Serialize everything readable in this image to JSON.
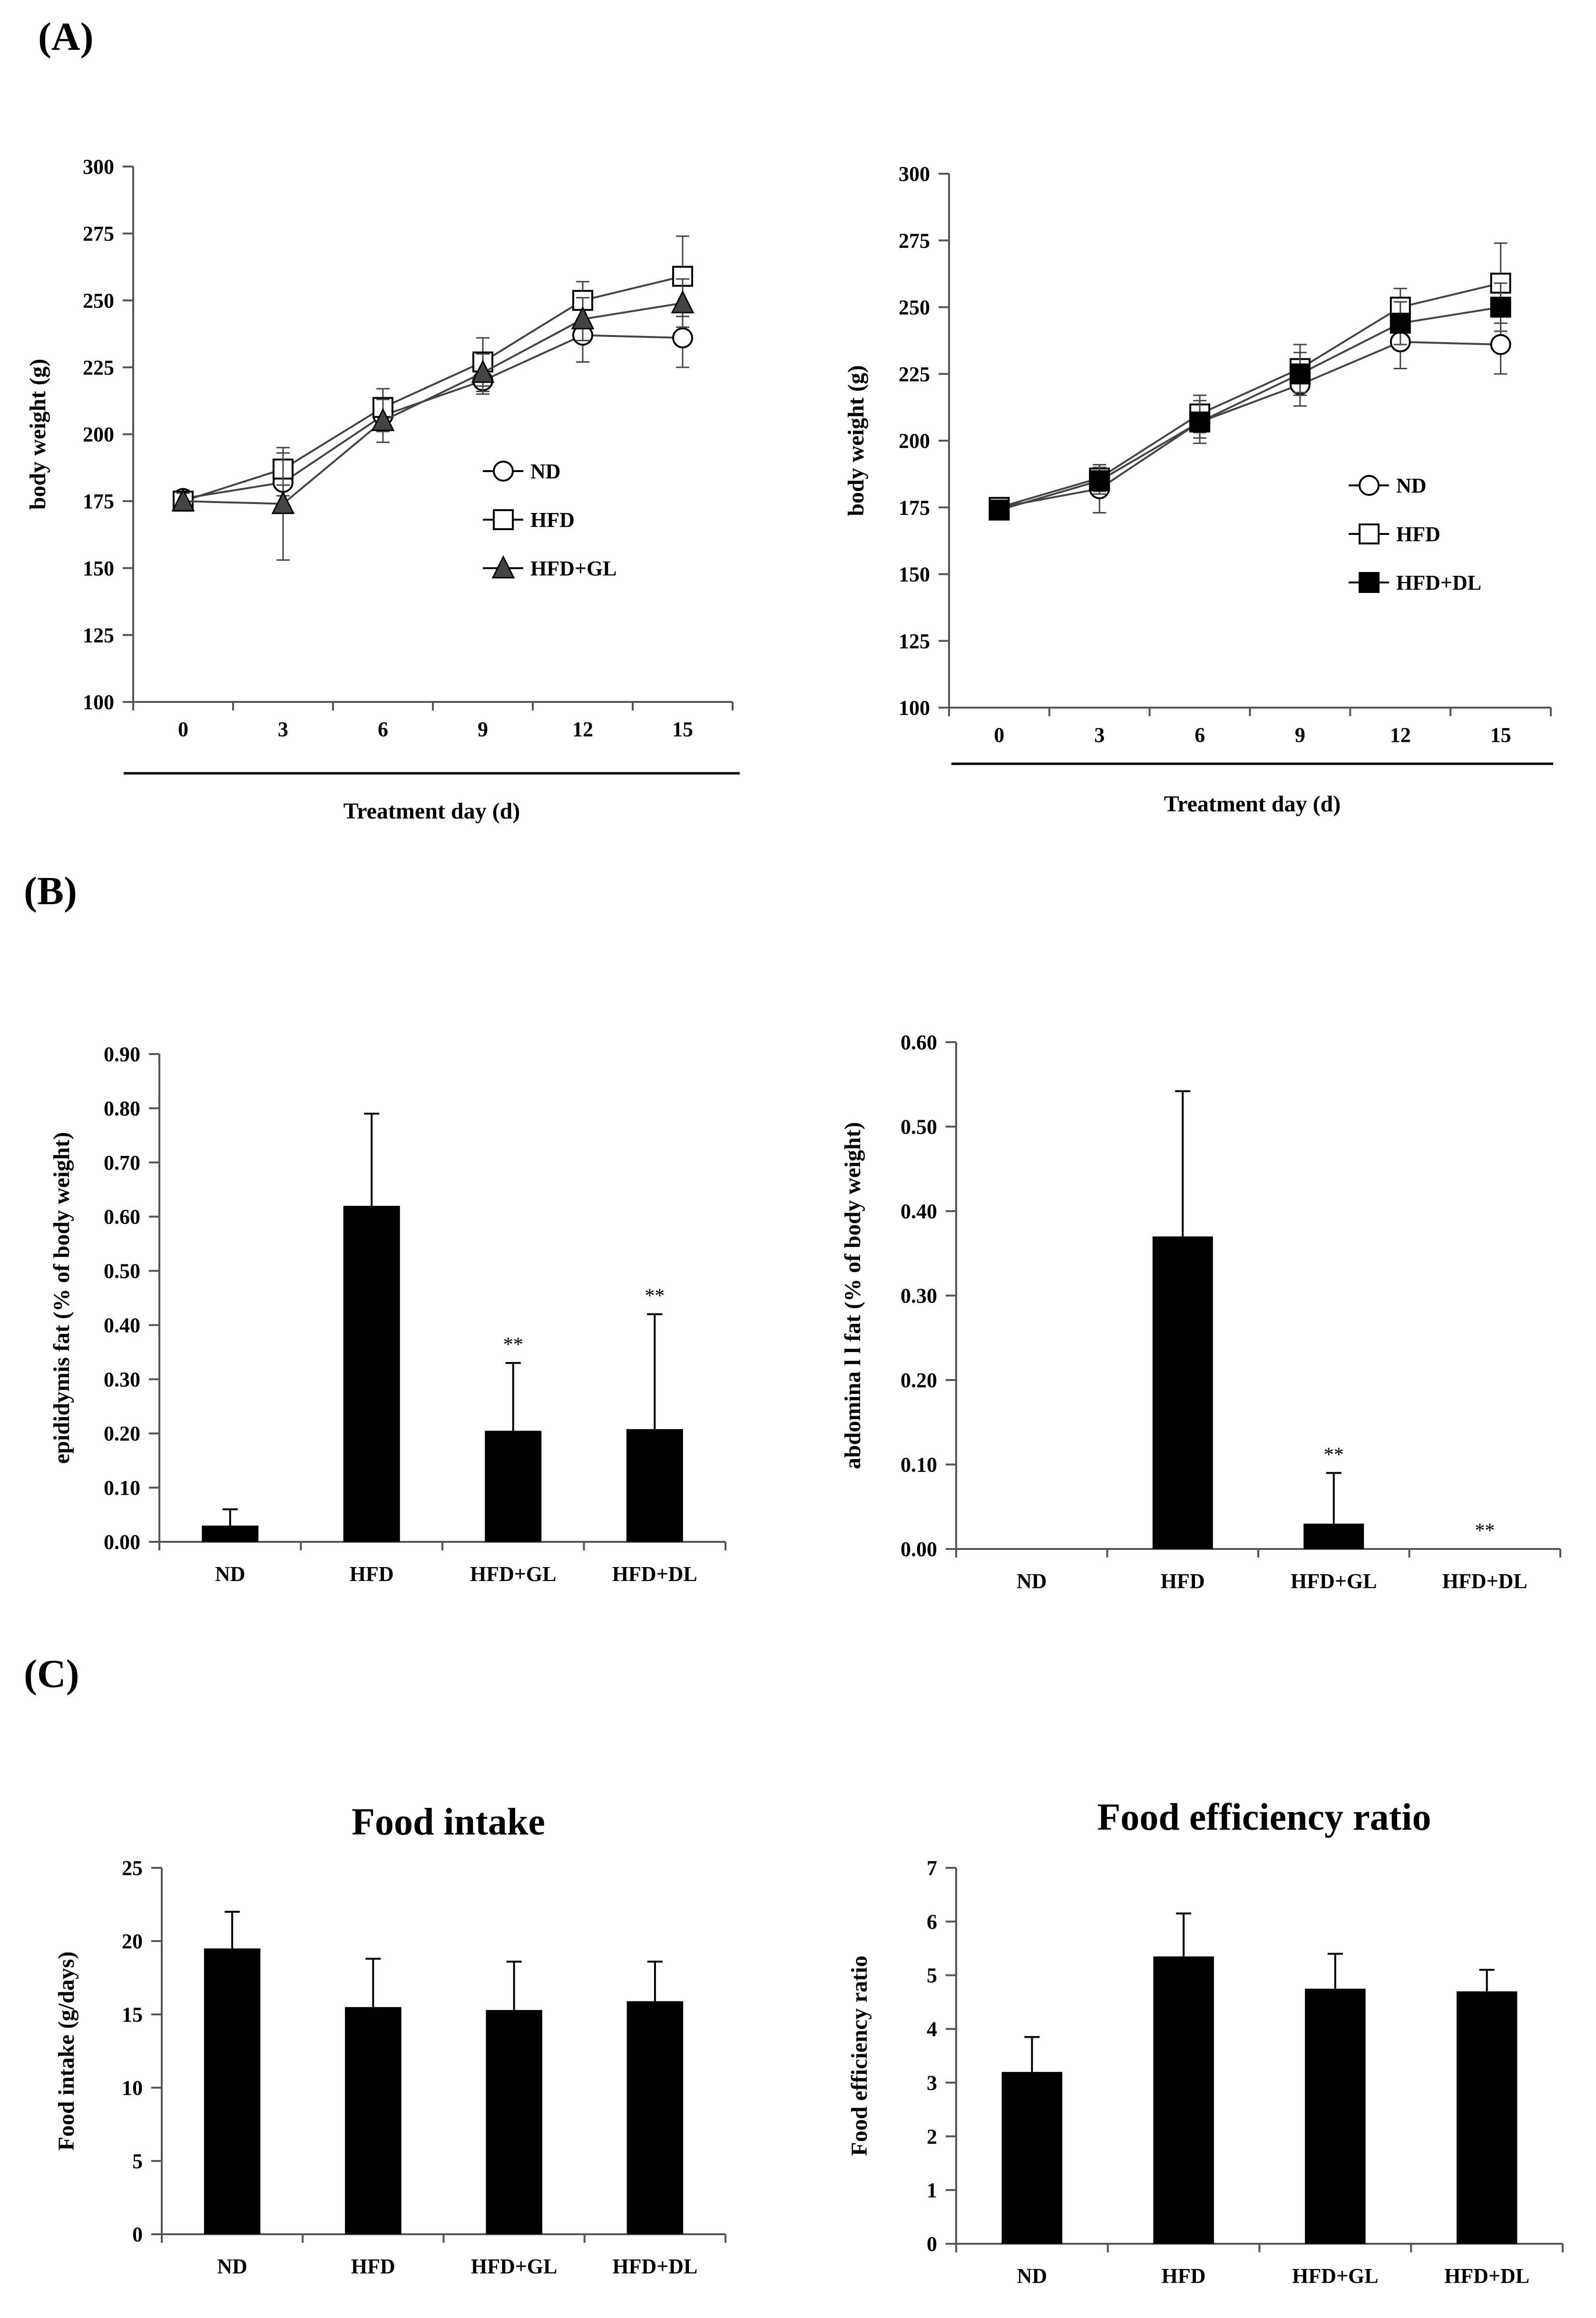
{
  "panel_labels": {
    "A": "(A)",
    "B": "(B)",
    "C": "(C)"
  },
  "colors": {
    "bar": "#000000",
    "axis": "#555555",
    "series_line": "#444444"
  },
  "chart_data": [
    {
      "type": "line",
      "x": [
        0,
        3,
        6,
        9,
        12,
        15
      ],
      "xlabel": "Treatment day (d)",
      "ylabel": "body weight (g)",
      "ylim": [
        100,
        300
      ],
      "yticks": [
        100,
        125,
        150,
        175,
        200,
        225,
        250,
        275,
        300
      ],
      "legend_position": "center-right",
      "series": [
        {
          "name": "ND",
          "marker": "circle-open",
          "values": [
            176,
            182,
            207,
            220,
            237,
            236
          ],
          "errors": [
            3,
            5,
            6,
            5,
            10,
            11
          ]
        },
        {
          "name": "HFD",
          "marker": "square-open",
          "values": [
            175,
            187,
            210,
            227,
            250,
            259
          ],
          "errors": [
            3,
            6,
            7,
            9,
            7,
            15
          ]
        },
        {
          "name": "HFD+GL",
          "marker": "triangle-filled",
          "values": [
            175,
            174,
            205,
            223,
            243,
            249
          ],
          "errors": [
            3,
            21,
            8,
            7,
            8,
            9
          ]
        }
      ]
    },
    {
      "type": "line",
      "x": [
        0,
        3,
        6,
        9,
        12,
        15
      ],
      "xlabel": "Treatment day (d)",
      "ylabel": "body weight (g)",
      "ylim": [
        100,
        300
      ],
      "yticks": [
        100,
        125,
        150,
        175,
        200,
        225,
        250,
        275,
        300
      ],
      "legend_position": "lower-right",
      "series": [
        {
          "name": "ND",
          "marker": "circle-open",
          "values": [
            175,
            182,
            207,
            221,
            237,
            236
          ],
          "errors": [
            3,
            9,
            6,
            8,
            10,
            11
          ]
        },
        {
          "name": "HFD",
          "marker": "square-open",
          "values": [
            175,
            186,
            210,
            227,
            250,
            259
          ],
          "errors": [
            3,
            5,
            7,
            9,
            7,
            15
          ]
        },
        {
          "name": "HFD+DL",
          "marker": "square-filled",
          "values": [
            174,
            185,
            207,
            225,
            244,
            250
          ],
          "errors": [
            3,
            5,
            8,
            8,
            8,
            9
          ]
        }
      ]
    },
    {
      "type": "bar",
      "categories": [
        "ND",
        "HFD",
        "HFD+GL",
        "HFD+DL"
      ],
      "values": [
        0.03,
        0.62,
        0.205,
        0.208
      ],
      "errors": [
        0.03,
        0.17,
        0.125,
        0.212
      ],
      "annotations": [
        "",
        "",
        "**",
        "**"
      ],
      "ylabel": "epididymis  fat (% of body weight)",
      "ylim": [
        0,
        0.9
      ],
      "yticks": [
        "0.00",
        "0.10",
        "0.20",
        "0.30",
        "0.40",
        "0.50",
        "0.60",
        "0.70",
        "0.80",
        "0.90"
      ]
    },
    {
      "type": "bar",
      "categories": [
        "ND",
        "HFD",
        "HFD+GL",
        "HFD+DL"
      ],
      "values": [
        0,
        0.37,
        0.03,
        0
      ],
      "errors": [
        0,
        0.172,
        0.06,
        0
      ],
      "annotations": [
        "",
        "",
        "**",
        "**"
      ],
      "ylabel": "abdomina l l fat  (% of body weight)",
      "ylim": [
        0,
        0.6
      ],
      "yticks": [
        "0.00",
        "0.10",
        "0.20",
        "0.30",
        "0.40",
        "0.50",
        "0.60"
      ]
    },
    {
      "type": "bar",
      "title": "Food intake",
      "categories": [
        "ND",
        "HFD",
        "HFD+GL",
        "HFD+DL"
      ],
      "values": [
        19.5,
        15.5,
        15.3,
        15.9
      ],
      "errors": [
        2.5,
        3.3,
        3.3,
        2.7
      ],
      "ylabel": "Food intake (g/days)",
      "ylim": [
        0,
        25
      ],
      "yticks": [
        "0",
        "5",
        "10",
        "15",
        "20",
        "25"
      ]
    },
    {
      "type": "bar",
      "title": "Food efficiency ratio",
      "categories": [
        "ND",
        "HFD",
        "HFD+GL",
        "HFD+DL"
      ],
      "values": [
        3.2,
        5.35,
        4.75,
        4.7
      ],
      "errors": [
        0.65,
        0.8,
        0.65,
        0.4
      ],
      "ylabel": "Food efficiency ratio",
      "ylim": [
        0,
        7
      ],
      "yticks": [
        "0",
        "1",
        "2",
        "3",
        "4",
        "5",
        "6",
        "7"
      ]
    }
  ]
}
